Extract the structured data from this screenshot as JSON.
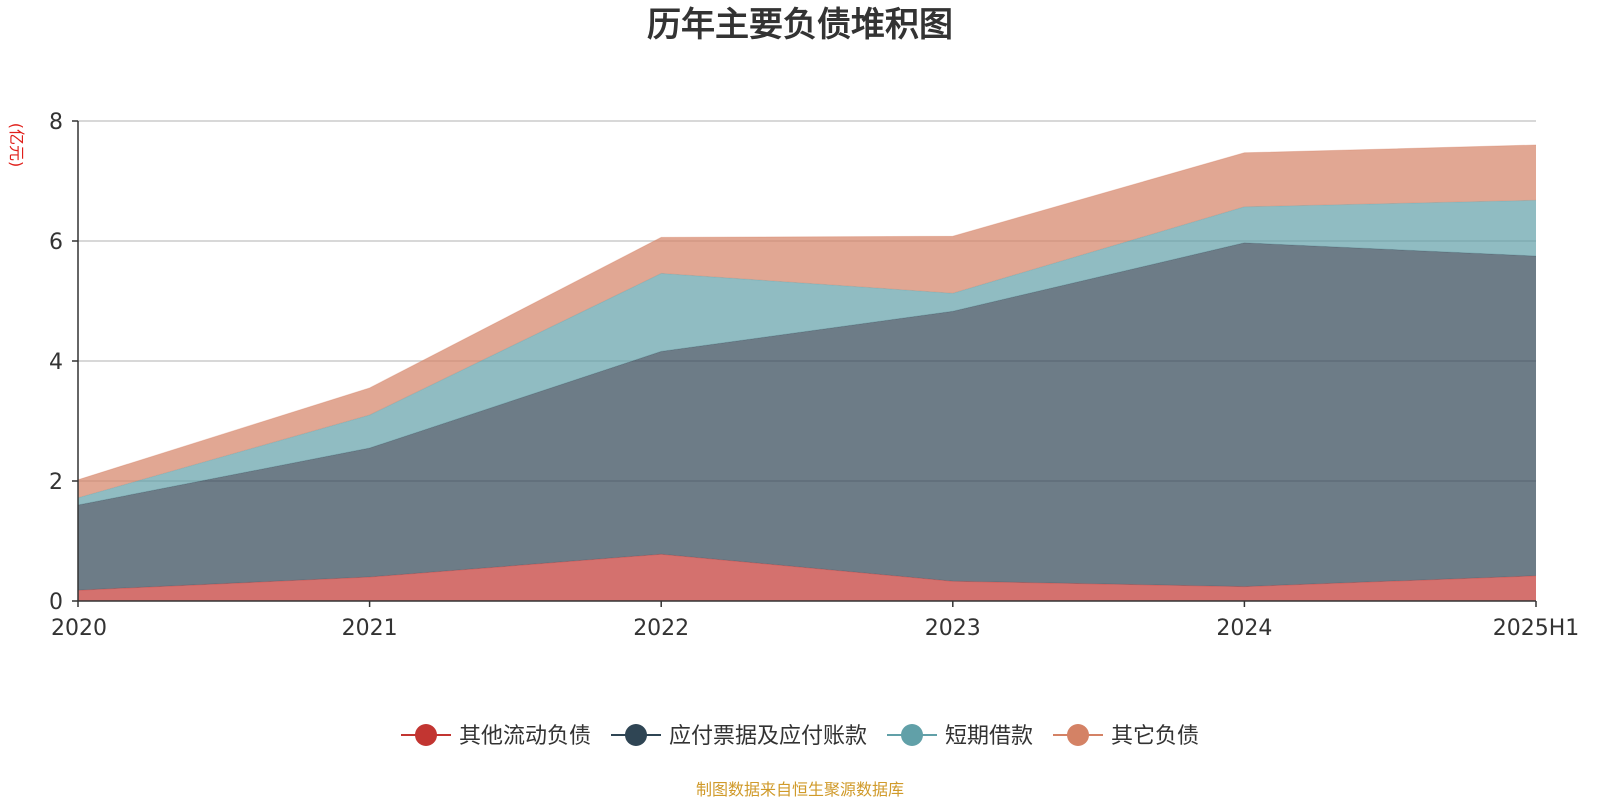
{
  "chart_data": {
    "type": "area",
    "stacked": true,
    "title": "历年主要负债堆积图",
    "unit_label": "(亿元)",
    "categories": [
      "2020",
      "2021",
      "2022",
      "2023",
      "2024",
      "2025H1"
    ],
    "ylim": [
      0,
      8
    ],
    "yticks": [
      0,
      2,
      4,
      6,
      8
    ],
    "grid": true,
    "legend_position": "bottom",
    "series": [
      {
        "name": "其他流动负债",
        "color": "#c23531",
        "values": [
          0.18,
          0.4,
          0.78,
          0.33,
          0.24,
          0.42
        ]
      },
      {
        "name": "应付票据及应付账款",
        "color": "#2f4554",
        "values": [
          1.42,
          2.15,
          3.38,
          4.5,
          5.73,
          5.33
        ]
      },
      {
        "name": "短期借款",
        "color": "#61a0a8",
        "values": [
          0.12,
          0.55,
          1.3,
          0.3,
          0.6,
          0.93
        ]
      },
      {
        "name": "其它负债",
        "color": "#d48265",
        "values": [
          0.3,
          0.45,
          0.6,
          0.95,
          0.9,
          0.92
        ]
      }
    ]
  },
  "source_text": "制图数据来自恒生聚源数据库"
}
